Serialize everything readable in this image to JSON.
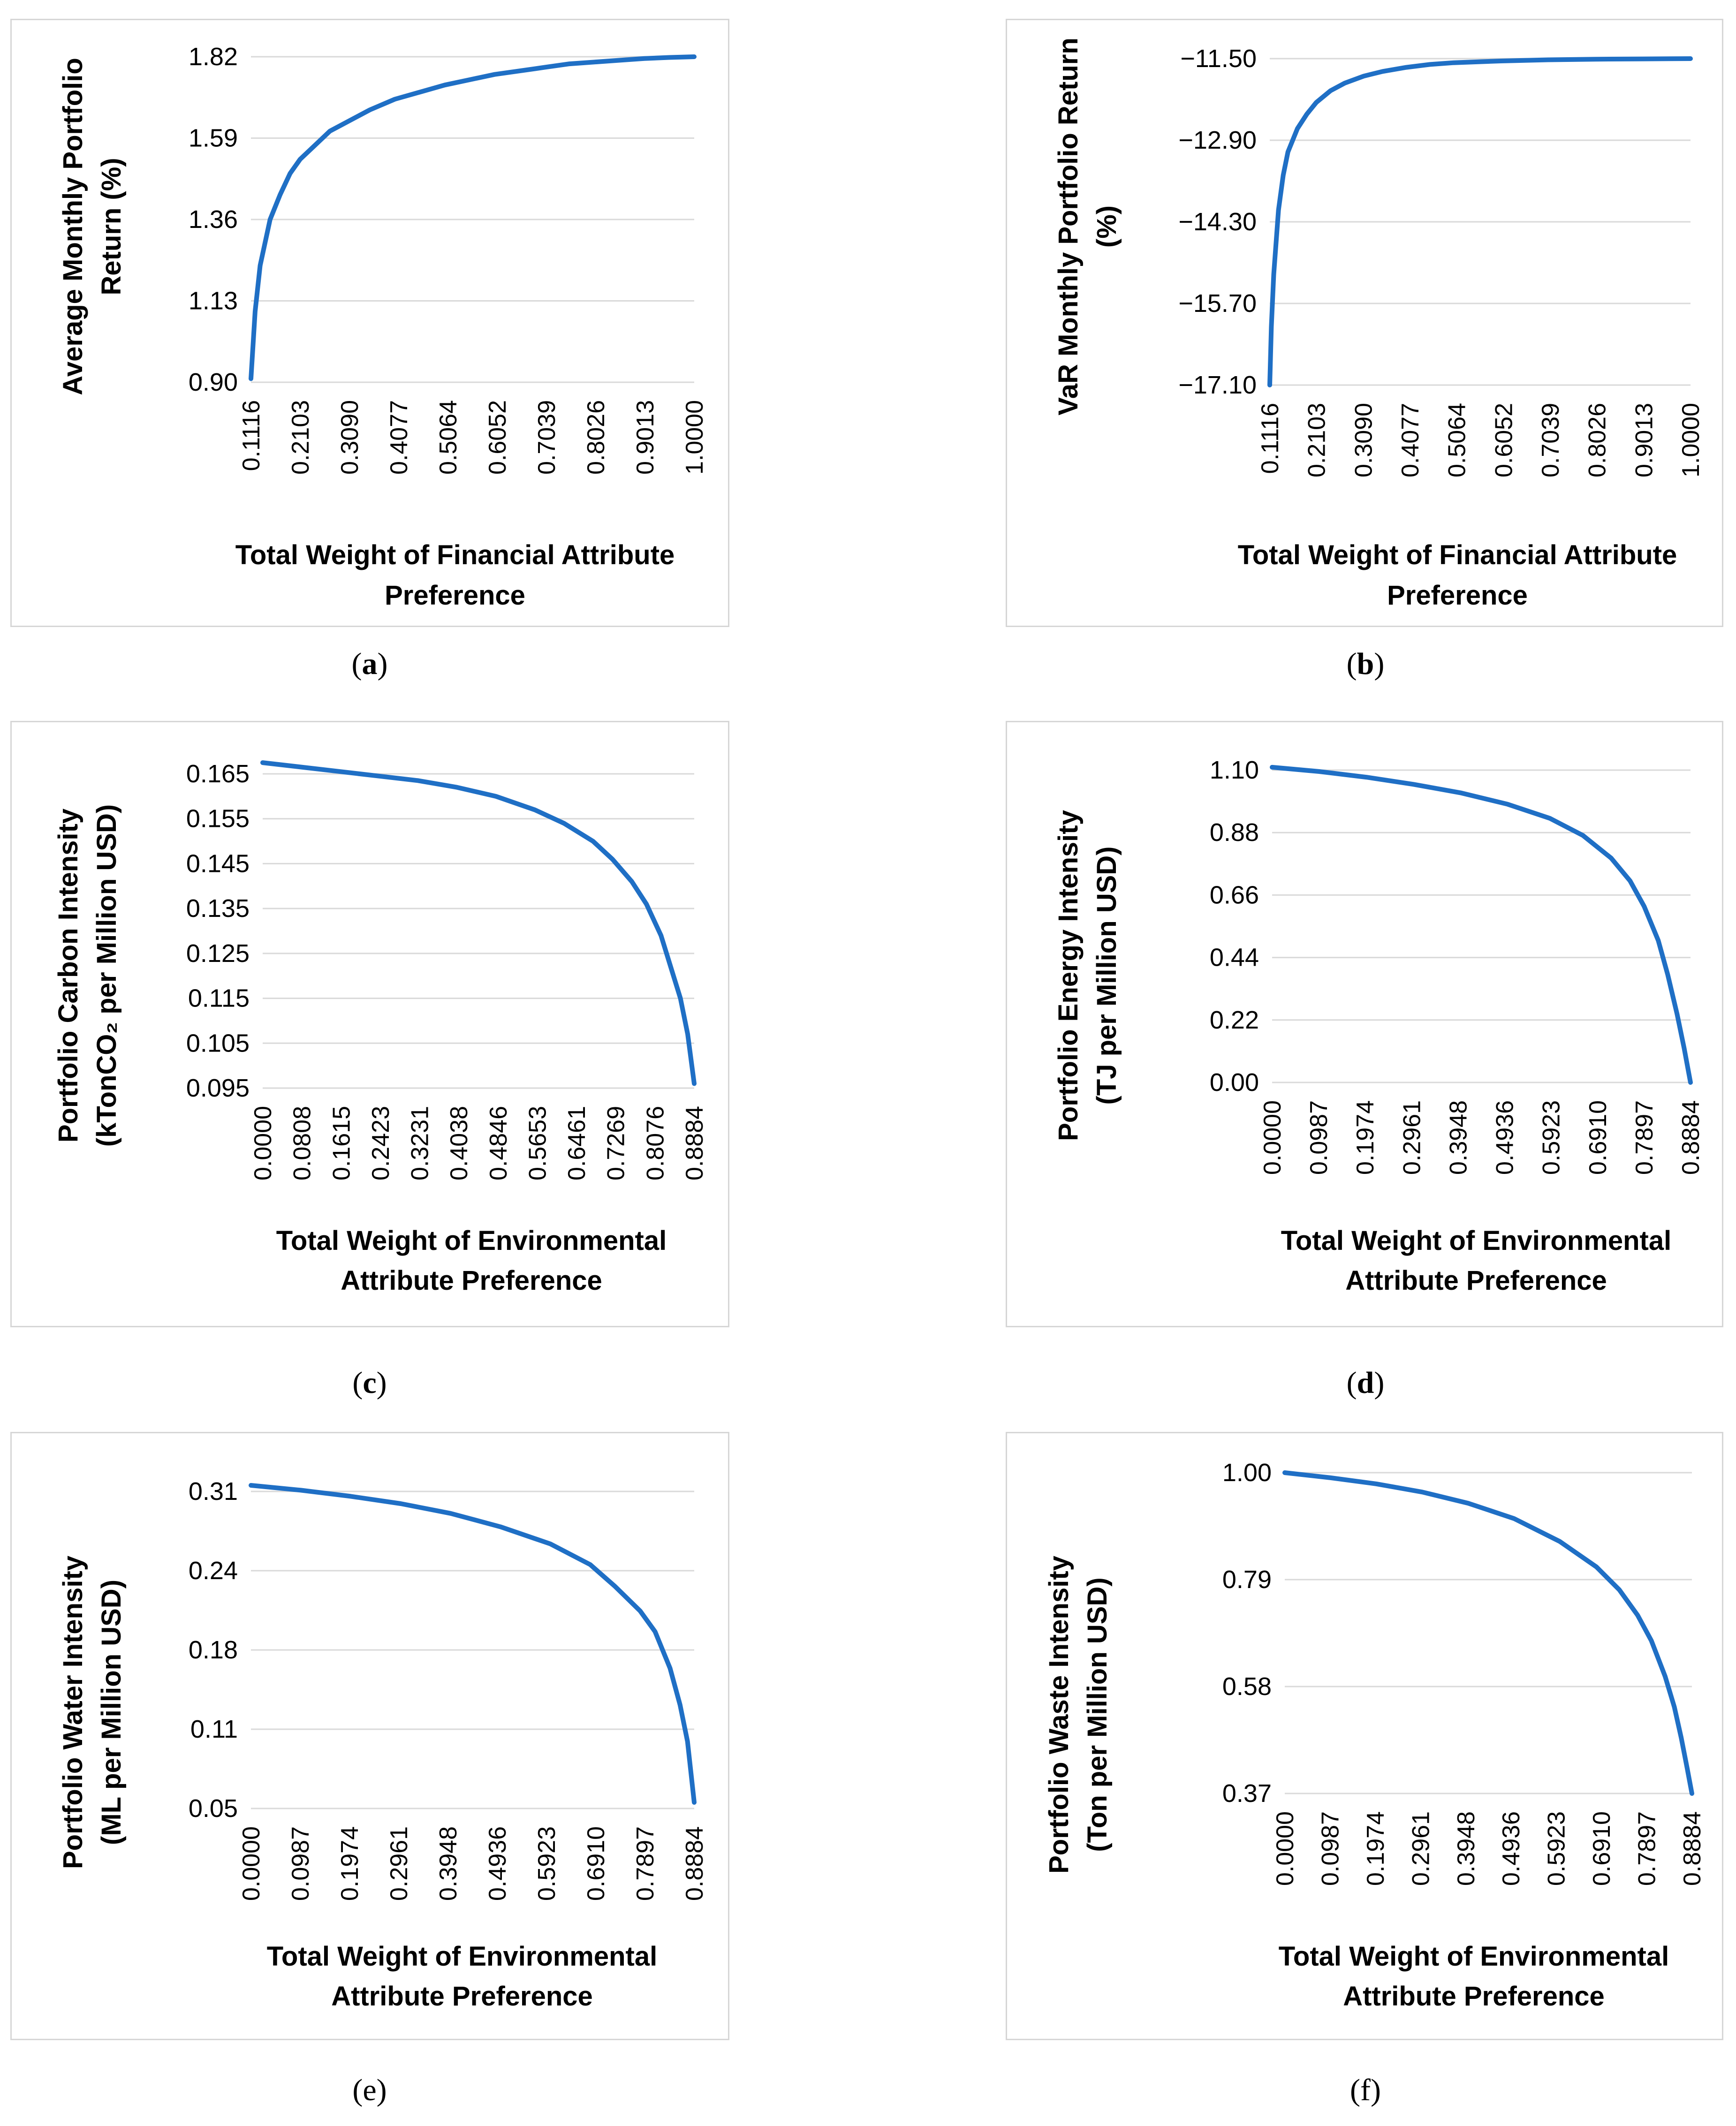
{
  "line_color": "#1f6fc5",
  "grid_color": "#d9d9d9",
  "panel_labels": {
    "a": {
      "open": "(",
      "letter": "a",
      "close": ")"
    },
    "b": {
      "open": "(",
      "letter": "b",
      "close": ")"
    },
    "c": {
      "open": "(",
      "letter": "c",
      "close": ")"
    },
    "d": {
      "open": "(",
      "letter": "d",
      "close": ")"
    },
    "e": {
      "open": "(",
      "letter": "e",
      "close": ")"
    },
    "f": {
      "open": "(",
      "letter": "f",
      "close": ")"
    }
  },
  "chart_data": [
    {
      "id": "a",
      "type": "line",
      "ylabel_lines": [
        "Average Monthly Portfolio",
        "Return (%)"
      ],
      "xlabel_lines": [
        "Total Weight  of Financial  Attribute",
        "Preference"
      ],
      "yticks": [
        "1.82",
        "1.59",
        "1.36",
        "1.13",
        "0.90"
      ],
      "ylim": [
        0.9,
        1.82
      ],
      "xticks": [
        "0.1116",
        "0.2103",
        "0.3090",
        "0.4077",
        "0.5064",
        "0.6052",
        "0.7039",
        "0.8026",
        "0.9013",
        "1.0000"
      ],
      "xlim": [
        0.1116,
        1.0
      ],
      "x": [
        0.1116,
        0.12,
        0.13,
        0.15,
        0.17,
        0.19,
        0.21,
        0.24,
        0.27,
        0.31,
        0.35,
        0.4,
        0.45,
        0.5,
        0.55,
        0.6,
        0.65,
        0.7,
        0.75,
        0.8,
        0.85,
        0.9,
        0.95,
        1.0
      ],
      "y": [
        0.91,
        1.1,
        1.23,
        1.36,
        1.43,
        1.49,
        1.53,
        1.57,
        1.61,
        1.64,
        1.67,
        1.7,
        1.72,
        1.74,
        1.755,
        1.77,
        1.78,
        1.79,
        1.8,
        1.805,
        1.81,
        1.815,
        1.818,
        1.82
      ]
    },
    {
      "id": "b",
      "type": "line",
      "ylabel_lines": [
        "VaR  Monthly Portfolio Return",
        "(%)"
      ],
      "xlabel_lines": [
        "Total Weight of Financial  Attribute",
        "Preference"
      ],
      "yticks": [
        "−11.50",
        "−12.90",
        "−14.30",
        "−15.70",
        "−17.10"
      ],
      "ylim": [
        -17.1,
        -11.5
      ],
      "xticks": [
        "0.1116",
        "0.2103",
        "0.3090",
        "0.4077",
        "0.5064",
        "0.6052",
        "0.7039",
        "0.8026",
        "0.9013",
        "1.0000"
      ],
      "xlim": [
        0.1116,
        1.0
      ],
      "x": [
        0.1116,
        0.115,
        0.12,
        0.13,
        0.14,
        0.15,
        0.17,
        0.19,
        0.21,
        0.24,
        0.27,
        0.31,
        0.35,
        0.4,
        0.45,
        0.5,
        0.6,
        0.7,
        0.8,
        0.9,
        1.0
      ],
      "y": [
        -17.1,
        -16.1,
        -15.2,
        -14.1,
        -13.5,
        -13.1,
        -12.7,
        -12.45,
        -12.25,
        -12.05,
        -11.92,
        -11.8,
        -11.72,
        -11.65,
        -11.6,
        -11.57,
        -11.54,
        -11.52,
        -11.51,
        -11.505,
        -11.5
      ]
    },
    {
      "id": "c",
      "type": "line",
      "ylabel_lines": [
        "Portfolio Carbon Intensity",
        "(kTonCO₂ per Million USD)"
      ],
      "xlabel_lines": [
        "Total Weight of Environmental",
        "Attribute Preference"
      ],
      "yticks": [
        "0.165",
        "0.155",
        "0.145",
        "0.135",
        "0.125",
        "0.115",
        "0.105",
        "0.095"
      ],
      "ylim": [
        0.095,
        0.165
      ],
      "xticks": [
        "0.0000",
        "0.0808",
        "0.1615",
        "0.2423",
        "0.3231",
        "0.4038",
        "0.4846",
        "0.5653",
        "0.6461",
        "0.7269",
        "0.8076",
        "0.8884"
      ],
      "xlim": [
        0.0,
        0.8884
      ],
      "x": [
        0.0,
        0.08,
        0.16,
        0.24,
        0.32,
        0.4,
        0.48,
        0.56,
        0.62,
        0.68,
        0.72,
        0.76,
        0.79,
        0.82,
        0.84,
        0.86,
        0.875,
        0.8884
      ],
      "y": [
        0.1675,
        0.1665,
        0.1655,
        0.1645,
        0.1635,
        0.162,
        0.16,
        0.157,
        0.154,
        0.15,
        0.146,
        0.141,
        0.136,
        0.129,
        0.122,
        0.115,
        0.107,
        0.096
      ]
    },
    {
      "id": "d",
      "type": "line",
      "ylabel_lines": [
        "Portfolio Energy Intensity",
        "(TJ per Million USD)"
      ],
      "xlabel_lines": [
        "Total Weight of Environmental",
        "Attribute Preference"
      ],
      "yticks": [
        "1.10",
        "0.88",
        "0.66",
        "0.44",
        "0.22",
        "0.00"
      ],
      "ylim": [
        0.0,
        1.1
      ],
      "xticks": [
        "0.0000",
        "0.0987",
        "0.1974",
        "0.2961",
        "0.3948",
        "0.4936",
        "0.5923",
        "0.6910",
        "0.7897",
        "0.8884"
      ],
      "xlim": [
        0.0,
        0.8884
      ],
      "x": [
        0.0,
        0.1,
        0.2,
        0.3,
        0.4,
        0.5,
        0.59,
        0.66,
        0.72,
        0.76,
        0.79,
        0.82,
        0.84,
        0.86,
        0.875,
        0.8884
      ],
      "y": [
        1.11,
        1.095,
        1.075,
        1.05,
        1.02,
        0.98,
        0.93,
        0.87,
        0.79,
        0.71,
        0.62,
        0.5,
        0.38,
        0.24,
        0.12,
        0.0
      ]
    },
    {
      "id": "e",
      "type": "line",
      "ylabel_lines": [
        "Portfolio Water Intensity",
        "(ML per Million USD)"
      ],
      "xlabel_lines": [
        "Total Weight of Environmental",
        "Attribute Preference"
      ],
      "yticks": [
        "0.31",
        "0.24",
        "0.18",
        "0.11",
        "0.05"
      ],
      "ylim": [
        0.05,
        0.31
      ],
      "xticks": [
        "0.0000",
        "0.0987",
        "0.1974",
        "0.2961",
        "0.3948",
        "0.4936",
        "0.5923",
        "0.6910",
        "0.7897",
        "0.8884"
      ],
      "xlim": [
        0.0,
        0.8884
      ],
      "x": [
        0.0,
        0.1,
        0.2,
        0.3,
        0.4,
        0.5,
        0.6,
        0.68,
        0.73,
        0.78,
        0.81,
        0.84,
        0.86,
        0.875,
        0.8884
      ],
      "y": [
        0.315,
        0.311,
        0.306,
        0.3,
        0.292,
        0.281,
        0.267,
        0.25,
        0.232,
        0.212,
        0.195,
        0.165,
        0.135,
        0.105,
        0.055
      ]
    },
    {
      "id": "f",
      "type": "line",
      "ylabel_lines": [
        "Portfolio Waste Intensity",
        "(Ton per Million USD)"
      ],
      "xlabel_lines": [
        "Total Weight of Environmental",
        "Attribute Preference"
      ],
      "yticks": [
        "1.00",
        "0.79",
        "0.58",
        "0.37"
      ],
      "ylim": [
        0.37,
        1.0
      ],
      "xticks": [
        "0.0000",
        "0.0987",
        "0.1974",
        "0.2961",
        "0.3948",
        "0.4936",
        "0.5923",
        "0.6910",
        "0.7897",
        "0.8884"
      ],
      "xlim": [
        0.0,
        0.8884
      ],
      "x": [
        0.0,
        0.1,
        0.2,
        0.3,
        0.4,
        0.5,
        0.6,
        0.68,
        0.73,
        0.77,
        0.8,
        0.83,
        0.85,
        0.865,
        0.878,
        0.8884
      ],
      "y": [
        1.0,
        0.99,
        0.978,
        0.962,
        0.94,
        0.91,
        0.865,
        0.815,
        0.77,
        0.72,
        0.67,
        0.6,
        0.54,
        0.48,
        0.42,
        0.37
      ]
    }
  ]
}
